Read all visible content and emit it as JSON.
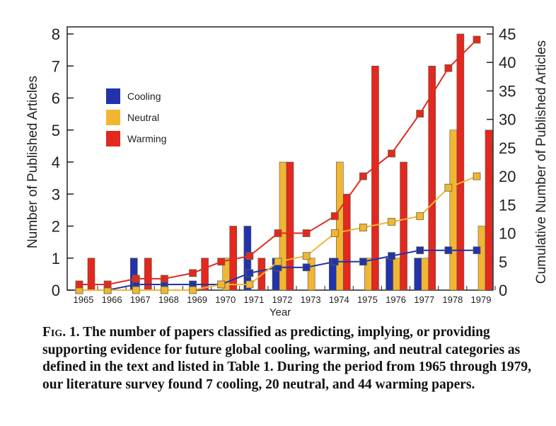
{
  "chart_data": {
    "type": "bar",
    "title": "",
    "xlabel": "Year",
    "ylabel": "Number of Published Articles",
    "ylabel_right": "Cumulative Number of Published Articles",
    "ylim": [
      0,
      8
    ],
    "ylim_right": [
      0,
      45
    ],
    "yticks": [
      "0",
      "1",
      "2",
      "3",
      "4",
      "5",
      "6",
      "7",
      "8"
    ],
    "yticks_right": [
      "0",
      "5",
      "10",
      "15",
      "20",
      "25",
      "30",
      "35",
      "40",
      "45"
    ],
    "categories": [
      "1965",
      "1966",
      "1967",
      "1968",
      "1969",
      "1970",
      "1971",
      "1972",
      "1973",
      "1974",
      "1975",
      "1976",
      "1977",
      "1978",
      "1979"
    ],
    "legend_position": "upper-left",
    "series": [
      {
        "name": "Cooling",
        "color": "#2233aa",
        "values": [
          0,
          0,
          1,
          0,
          0,
          0,
          2,
          1,
          0,
          1,
          0,
          1,
          1,
          0,
          0
        ],
        "cumulative": [
          0,
          0,
          1,
          1,
          1,
          1,
          3,
          4,
          4,
          5,
          5,
          6,
          7,
          7,
          7
        ]
      },
      {
        "name": "Neutral",
        "color": "#f2b632",
        "values": [
          0,
          0,
          0,
          0,
          0,
          1,
          0,
          4,
          1,
          4,
          1,
          1,
          1,
          5,
          2
        ],
        "cumulative": [
          0,
          0,
          0,
          0,
          0,
          1,
          1,
          5,
          6,
          10,
          11,
          12,
          13,
          18,
          20
        ]
      },
      {
        "name": "Warming",
        "color": "#e3281e",
        "values": [
          1,
          0,
          1,
          0,
          1,
          2,
          1,
          4,
          0,
          3,
          7,
          4,
          7,
          8,
          5
        ],
        "cumulative": [
          1,
          1,
          2,
          2,
          3,
          5,
          6,
          10,
          10,
          13,
          20,
          24,
          31,
          39,
          44
        ]
      }
    ]
  },
  "caption": {
    "fig_label": "Fig. 1.",
    "text": "The number of papers classified as predicting, implying, or providing supporting evidence for future global cooling, warming, and neutral categories as defined in the text and listed in Table 1. During the period from 1965 through 1979, our literature survey found 7 cooling, 20 neutral, and 44 warming papers."
  }
}
